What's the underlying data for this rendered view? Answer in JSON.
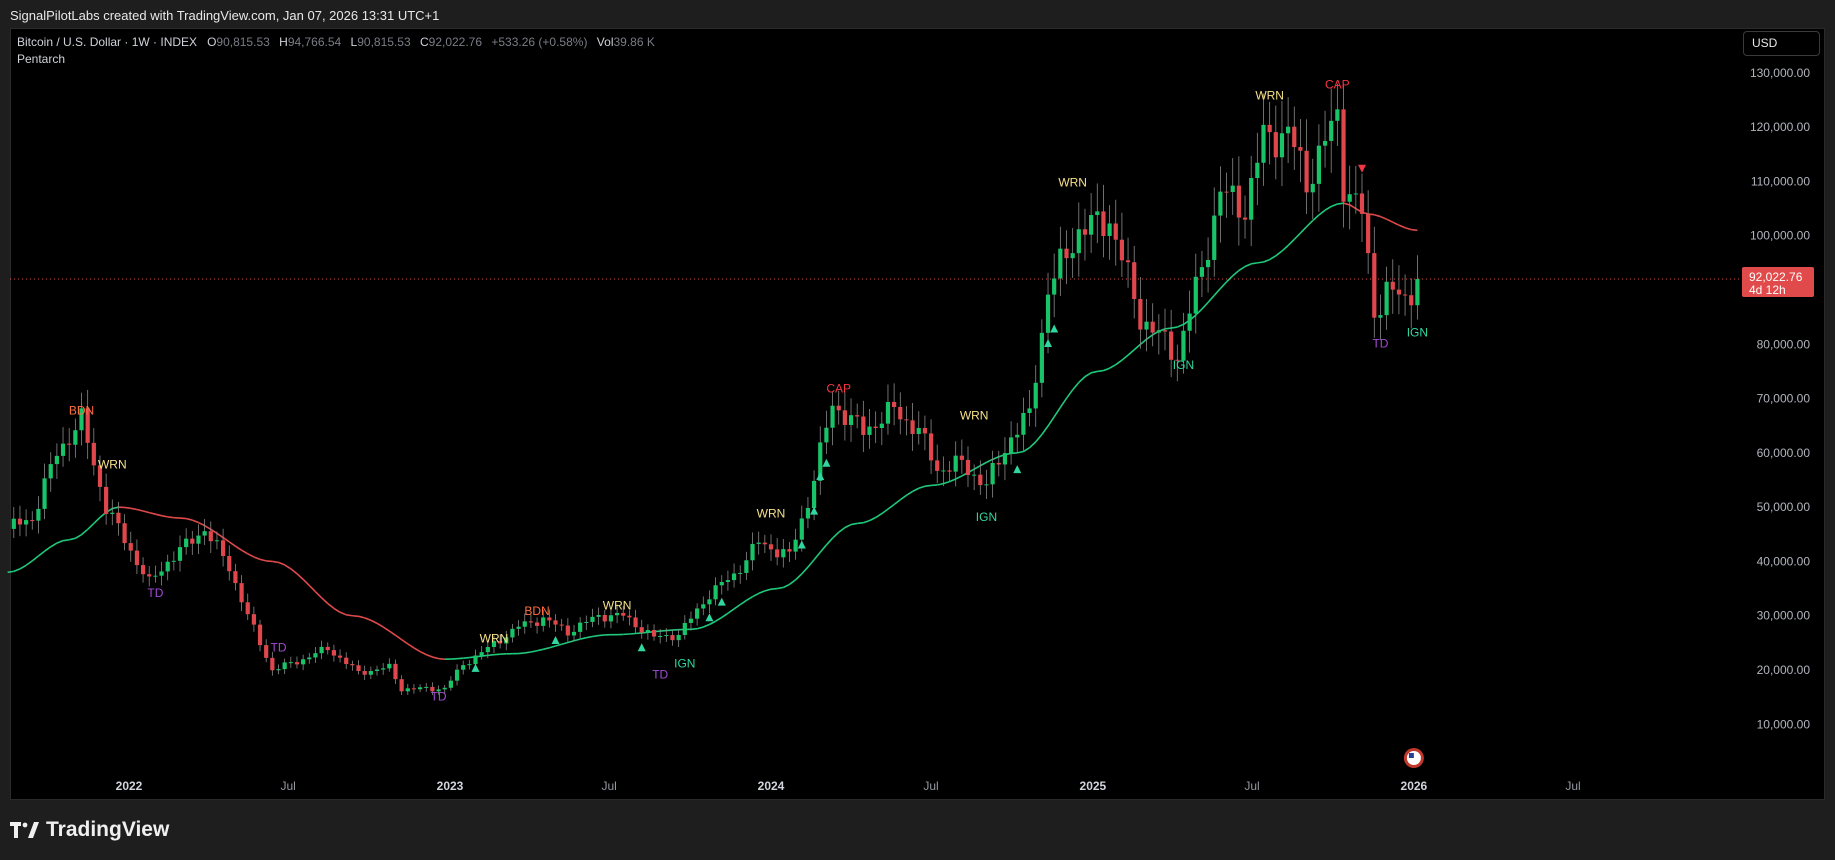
{
  "header": {
    "attribution": "SignalPilotLabs created with TradingView.com, Jan 07, 2026 13:31 UTC+1"
  },
  "legend": {
    "symbol": "Bitcoin / U.S. Dollar · 1W · INDEX",
    "open_label": "O",
    "open": "90,815.53",
    "high_label": "H",
    "high": "94,766.54",
    "low_label": "L",
    "low": "90,815.53",
    "close_label": "C",
    "close": "92,022.76",
    "change": "+533.26 (+0.58%)",
    "vol_label": "Vol",
    "vol": "39.86 K",
    "indicator": "Pentarch"
  },
  "currency_button": "USD",
  "footer": {
    "brand": "TradingView"
  },
  "colors": {
    "background": "#000000",
    "bull": "#19c468",
    "bear": "#e0474c",
    "ma_up": "#1fc97a",
    "ma_down": "#e04a4a",
    "warn": "#f5e08a",
    "cap": "#f23645",
    "bdn": "#ff7043",
    "td": "#a24bd6",
    "ign": "#32d6a0",
    "price_tag": "#e04a4a"
  },
  "chart_data": {
    "type": "candlestick",
    "title": "Bitcoin / U.S. Dollar · 1W · INDEX",
    "timeframe": "1W",
    "y_ticks": [
      "130,000.00",
      "120,000.00",
      "110,000.00",
      "100,000.00",
      "90,000.00",
      "80,000.00",
      "70,000.00",
      "60,000.00",
      "50,000.00",
      "40,000.00",
      "30,000.00",
      "20,000.00",
      "10,000.00"
    ],
    "y_tick_values": [
      130000,
      120000,
      110000,
      100000,
      90000,
      80000,
      70000,
      60000,
      50000,
      40000,
      30000,
      20000,
      10000
    ],
    "x_ticks": [
      {
        "label": "2022",
        "date": "2022-01-01",
        "bold": true
      },
      {
        "label": "Jul",
        "date": "2022-07-01",
        "bold": false
      },
      {
        "label": "2023",
        "date": "2023-01-01",
        "bold": true
      },
      {
        "label": "Jul",
        "date": "2023-07-01",
        "bold": false
      },
      {
        "label": "2024",
        "date": "2024-01-01",
        "bold": true
      },
      {
        "label": "Jul",
        "date": "2024-07-01",
        "bold": false
      },
      {
        "label": "2025",
        "date": "2025-01-01",
        "bold": true
      },
      {
        "label": "Jul",
        "date": "2025-07-01",
        "bold": false
      },
      {
        "label": "2026",
        "date": "2026-01-01",
        "bold": true
      },
      {
        "label": "Jul",
        "date": "2026-07-01",
        "bold": false
      }
    ],
    "last_price": "92,022.76",
    "last_price_value": 92022.76,
    "countdown": "4d 12h",
    "anchors": [
      [
        "2021-08-16",
        46000
      ],
      [
        "2021-09-13",
        48000
      ],
      [
        "2021-10-11",
        60000
      ],
      [
        "2021-11-08",
        66000
      ],
      [
        "2021-12-06",
        50000
      ],
      [
        "2022-01-03",
        42000
      ],
      [
        "2022-01-24",
        36000
      ],
      [
        "2022-02-14",
        40000
      ],
      [
        "2022-03-28",
        46000
      ],
      [
        "2022-04-25",
        39000
      ],
      [
        "2022-05-16",
        30000
      ],
      [
        "2022-06-13",
        20000
      ],
      [
        "2022-07-18",
        22000
      ],
      [
        "2022-08-15",
        24000
      ],
      [
        "2022-09-19",
        19500
      ],
      [
        "2022-10-24",
        20500
      ],
      [
        "2022-11-07",
        16500
      ],
      [
        "2022-12-26",
        16600
      ],
      [
        "2023-01-16",
        21000
      ],
      [
        "2023-02-13",
        24000
      ],
      [
        "2023-03-20",
        28000
      ],
      [
        "2023-04-17",
        29500
      ],
      [
        "2023-05-15",
        27000
      ],
      [
        "2023-06-19",
        30000
      ],
      [
        "2023-07-17",
        30000
      ],
      [
        "2023-08-21",
        26000
      ],
      [
        "2023-09-18",
        26500
      ],
      [
        "2023-10-23",
        34000
      ],
      [
        "2023-11-20",
        37500
      ],
      [
        "2023-12-18",
        43500
      ],
      [
        "2024-01-22",
        41000
      ],
      [
        "2024-02-12",
        51000
      ],
      [
        "2024-03-11",
        69000
      ],
      [
        "2024-04-15",
        64000
      ],
      [
        "2024-05-20",
        68000
      ],
      [
        "2024-06-17",
        64000
      ],
      [
        "2024-07-08",
        57000
      ],
      [
        "2024-08-05",
        58000
      ],
      [
        "2024-09-02",
        54000
      ],
      [
        "2024-09-30",
        63000
      ],
      [
        "2024-10-21",
        67000
      ],
      [
        "2024-11-11",
        90000
      ],
      [
        "2024-12-16",
        101000
      ],
      [
        "2025-01-20",
        103000
      ],
      [
        "2025-02-24",
        85000
      ],
      [
        "2025-04-07",
        78000
      ],
      [
        "2025-05-05",
        94000
      ],
      [
        "2025-05-26",
        108000
      ],
      [
        "2025-06-23",
        105000
      ],
      [
        "2025-07-14",
        118000
      ],
      [
        "2025-08-11",
        119000
      ],
      [
        "2025-09-01",
        110000
      ],
      [
        "2025-10-06",
        122000
      ],
      [
        "2025-10-13",
        110000
      ],
      [
        "2025-11-03",
        104000
      ],
      [
        "2025-11-17",
        86000
      ],
      [
        "2025-12-01",
        90000
      ],
      [
        "2025-12-22",
        88000
      ],
      [
        "2026-01-05",
        92022
      ]
    ],
    "ma_anchors": [
      [
        "2021-08-16",
        38000
      ],
      [
        "2021-10-25",
        44000
      ],
      [
        "2021-12-20",
        50000
      ],
      [
        "2022-02-28",
        48000
      ],
      [
        "2022-06-13",
        40000
      ],
      [
        "2022-09-12",
        30000
      ],
      [
        "2022-12-26",
        22000
      ],
      [
        "2023-03-13",
        23000
      ],
      [
        "2023-07-03",
        26500
      ],
      [
        "2023-10-02",
        27500
      ],
      [
        "2024-01-08",
        35000
      ],
      [
        "2024-04-08",
        47000
      ],
      [
        "2024-07-01",
        54000
      ],
      [
        "2024-10-07",
        60000
      ],
      [
        "2025-01-06",
        75000
      ],
      [
        "2025-03-31",
        83000
      ],
      [
        "2025-07-07",
        95000
      ],
      [
        "2025-10-13",
        106000
      ],
      [
        "2025-11-10",
        104000
      ],
      [
        "2026-01-05",
        101000
      ]
    ],
    "signals": [
      {
        "label": "BDN",
        "kind": "bdn",
        "date": "2021-11-08",
        "value": 66000,
        "pos": "above"
      },
      {
        "label": "WRN",
        "kind": "warn",
        "date": "2021-12-13",
        "value": 56000,
        "pos": "above"
      },
      {
        "label": "TD",
        "kind": "td",
        "date": "2022-01-31",
        "value": 36000,
        "pos": "below"
      },
      {
        "label": "TD",
        "kind": "td",
        "date": "2022-06-20",
        "value": 26000,
        "pos": "below"
      },
      {
        "label": "TD",
        "kind": "td",
        "date": "2022-12-19",
        "value": 17000,
        "pos": "below"
      },
      {
        "label": "WRN",
        "kind": "warn",
        "date": "2023-02-20",
        "value": 24000,
        "pos": "above"
      },
      {
        "label": "BDN",
        "kind": "bdn",
        "date": "2023-04-10",
        "value": 29000,
        "pos": "above"
      },
      {
        "label": "WRN",
        "kind": "warn",
        "date": "2023-07-10",
        "value": 30000,
        "pos": "above"
      },
      {
        "label": "TD",
        "kind": "td",
        "date": "2023-08-28",
        "value": 21000,
        "pos": "below"
      },
      {
        "label": "IGN",
        "kind": "ign",
        "date": "2023-09-25",
        "value": 23000,
        "pos": "below"
      },
      {
        "label": "WRN",
        "kind": "warn",
        "date": "2024-01-01",
        "value": 47000,
        "pos": "above"
      },
      {
        "label": "CAP",
        "kind": "cap",
        "date": "2024-03-18",
        "value": 70000,
        "pos": "above"
      },
      {
        "label": "WRN",
        "kind": "warn",
        "date": "2024-08-19",
        "value": 65000,
        "pos": "above"
      },
      {
        "label": "IGN",
        "kind": "ign",
        "date": "2024-09-02",
        "value": 50000,
        "pos": "below"
      },
      {
        "label": "WRN",
        "kind": "warn",
        "date": "2024-12-09",
        "value": 108000,
        "pos": "above"
      },
      {
        "label": "IGN",
        "kind": "ign",
        "date": "2025-04-14",
        "value": 78000,
        "pos": "below"
      },
      {
        "label": "WRN",
        "kind": "warn",
        "date": "2025-07-21",
        "value": 124000,
        "pos": "above"
      },
      {
        "label": "CAP",
        "kind": "cap",
        "date": "2025-10-06",
        "value": 126000,
        "pos": "above"
      },
      {
        "label": "TD",
        "kind": "td",
        "date": "2025-11-24",
        "value": 82000,
        "pos": "below"
      },
      {
        "label": "IGN",
        "kind": "ign",
        "date": "2026-01-05",
        "value": 84000,
        "pos": "below"
      }
    ],
    "arrows_up": [
      "2023-01-30",
      "2023-05-01",
      "2023-08-07",
      "2023-10-23",
      "2023-11-06",
      "2024-02-05",
      "2024-02-19",
      "2024-02-26",
      "2024-03-04",
      "2024-10-07",
      "2024-11-11",
      "2024-11-18"
    ],
    "arrows_down": [
      "2025-11-03"
    ]
  }
}
